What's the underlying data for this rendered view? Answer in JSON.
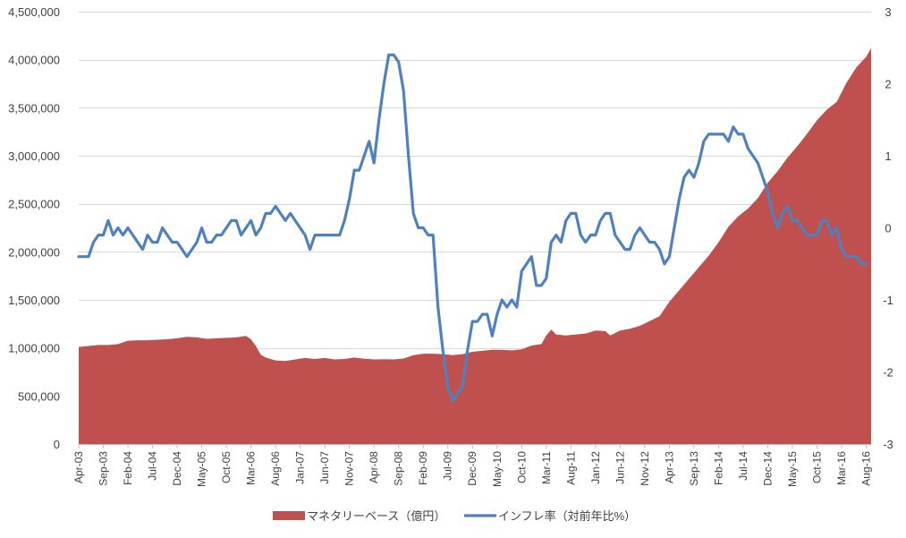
{
  "chart_data": {
    "type": "area+line",
    "xlabel": "",
    "ylabel_left": "",
    "ylabel_right": "",
    "left_axis": {
      "ylim": [
        0,
        4500000
      ],
      "ticks": [
        0,
        500000,
        1000000,
        1500000,
        2000000,
        2500000,
        3000000,
        3500000,
        4000000,
        4500000
      ],
      "tick_labels": [
        "0",
        "500,000",
        "1,000,000",
        "1,500,000",
        "2,000,000",
        "2,500,000",
        "3,000,000",
        "3,500,000",
        "4,000,000",
        "4,500,000"
      ]
    },
    "right_axis": {
      "ylim": [
        -3,
        3
      ],
      "ticks": [
        -3,
        -2,
        -1,
        0,
        1,
        2,
        3
      ],
      "tick_labels": [
        "-3",
        "-2",
        "-1",
        "0",
        "1",
        "2",
        "3"
      ]
    },
    "x_tick_labels": [
      "Apr-03",
      "Sep-03",
      "Feb-04",
      "Jul-04",
      "Dec-04",
      "May-05",
      "Oct-05",
      "Mar-06",
      "Aug-06",
      "Jan-07",
      "Jun-07",
      "Nov-07",
      "Apr-08",
      "Sep-08",
      "Feb-09",
      "Jul-09",
      "Dec-09",
      "May-10",
      "Oct-10",
      "Mar-11",
      "Aug-11",
      "Jan-12",
      "Jun-12",
      "Nov-12",
      "Apr-13",
      "Sep-13",
      "Feb-14",
      "Jul-14",
      "Dec-14",
      "May-15",
      "Oct-15",
      "Mar-16",
      "Aug-16"
    ],
    "grid": true,
    "legend_position": "bottom",
    "series": [
      {
        "name": "マネタリーベース（億円）",
        "type": "area",
        "axis": "left",
        "color": "#c0504d",
        "points": [
          [
            "Apr-03",
            1010000
          ],
          [
            "Jun-03",
            1020000
          ],
          [
            "Aug-03",
            1030000
          ],
          [
            "Oct-03",
            1030000
          ],
          [
            "Dec-03",
            1040000
          ],
          [
            "Feb-04",
            1075000
          ],
          [
            "Apr-04",
            1080000
          ],
          [
            "Jun-04",
            1080000
          ],
          [
            "Aug-04",
            1085000
          ],
          [
            "Oct-04",
            1090000
          ],
          [
            "Dec-04",
            1100000
          ],
          [
            "Feb-05",
            1115000
          ],
          [
            "Apr-05",
            1110000
          ],
          [
            "Jun-05",
            1095000
          ],
          [
            "Aug-05",
            1100000
          ],
          [
            "Oct-05",
            1105000
          ],
          [
            "Dec-05",
            1110000
          ],
          [
            "Feb-06",
            1125000
          ],
          [
            "Mar-06",
            1090000
          ],
          [
            "Apr-06",
            1020000
          ],
          [
            "May-06",
            930000
          ],
          [
            "Jun-06",
            900000
          ],
          [
            "Aug-06",
            870000
          ],
          [
            "Oct-06",
            865000
          ],
          [
            "Dec-06",
            880000
          ],
          [
            "Feb-07",
            895000
          ],
          [
            "Apr-07",
            885000
          ],
          [
            "Jun-07",
            895000
          ],
          [
            "Aug-07",
            880000
          ],
          [
            "Oct-07",
            885000
          ],
          [
            "Dec-07",
            900000
          ],
          [
            "Feb-08",
            888000
          ],
          [
            "Apr-08",
            880000
          ],
          [
            "Jun-08",
            882000
          ],
          [
            "Aug-08",
            880000
          ],
          [
            "Oct-08",
            890000
          ],
          [
            "Dec-08",
            925000
          ],
          [
            "Feb-09",
            940000
          ],
          [
            "Apr-09",
            940000
          ],
          [
            "Jun-09",
            935000
          ],
          [
            "Aug-09",
            925000
          ],
          [
            "Oct-09",
            935000
          ],
          [
            "Dec-09",
            960000
          ],
          [
            "Feb-10",
            970000
          ],
          [
            "Apr-10",
            980000
          ],
          [
            "Jun-10",
            980000
          ],
          [
            "Aug-10",
            975000
          ],
          [
            "Oct-10",
            985000
          ],
          [
            "Dec-10",
            1025000
          ],
          [
            "Feb-11",
            1040000
          ],
          [
            "Mar-11",
            1130000
          ],
          [
            "Apr-11",
            1190000
          ],
          [
            "May-11",
            1140000
          ],
          [
            "Jul-11",
            1130000
          ],
          [
            "Sep-11",
            1140000
          ],
          [
            "Nov-11",
            1150000
          ],
          [
            "Jan-12",
            1180000
          ],
          [
            "Mar-12",
            1175000
          ],
          [
            "Apr-12",
            1130000
          ],
          [
            "Jun-12",
            1180000
          ],
          [
            "Aug-12",
            1200000
          ],
          [
            "Oct-12",
            1230000
          ],
          [
            "Dec-12",
            1280000
          ],
          [
            "Feb-13",
            1330000
          ],
          [
            "Apr-13",
            1480000
          ],
          [
            "Jun-13",
            1600000
          ],
          [
            "Aug-13",
            1720000
          ],
          [
            "Oct-13",
            1840000
          ],
          [
            "Dec-13",
            1960000
          ],
          [
            "Feb-14",
            2100000
          ],
          [
            "Apr-14",
            2260000
          ],
          [
            "Jun-14",
            2370000
          ],
          [
            "Aug-14",
            2450000
          ],
          [
            "Oct-14",
            2560000
          ],
          [
            "Dec-14",
            2720000
          ],
          [
            "Feb-15",
            2840000
          ],
          [
            "Apr-15",
            2980000
          ],
          [
            "Jun-15",
            3100000
          ],
          [
            "Aug-15",
            3230000
          ],
          [
            "Oct-15",
            3370000
          ],
          [
            "Dec-15",
            3480000
          ],
          [
            "Feb-16",
            3560000
          ],
          [
            "Apr-16",
            3760000
          ],
          [
            "Jun-16",
            3920000
          ],
          [
            "Aug-16",
            4030000
          ],
          [
            "Sep-16",
            4120000
          ]
        ]
      },
      {
        "name": "インフレ率（対前年比%）",
        "type": "line",
        "axis": "right",
        "color": "#4f81bd",
        "points": [
          [
            "Apr-03",
            -0.4
          ],
          [
            "May-03",
            -0.4
          ],
          [
            "Jun-03",
            -0.4
          ],
          [
            "Jul-03",
            -0.2
          ],
          [
            "Aug-03",
            -0.1
          ],
          [
            "Sep-03",
            -0.1
          ],
          [
            "Oct-03",
            0.1
          ],
          [
            "Nov-03",
            -0.1
          ],
          [
            "Dec-03",
            0.0
          ],
          [
            "Jan-04",
            -0.1
          ],
          [
            "Feb-04",
            0.0
          ],
          [
            "Mar-04",
            -0.1
          ],
          [
            "Apr-04",
            -0.2
          ],
          [
            "May-04",
            -0.3
          ],
          [
            "Jun-04",
            -0.1
          ],
          [
            "Jul-04",
            -0.2
          ],
          [
            "Aug-04",
            -0.2
          ],
          [
            "Sep-04",
            0.0
          ],
          [
            "Oct-04",
            -0.1
          ],
          [
            "Nov-04",
            -0.2
          ],
          [
            "Dec-04",
            -0.2
          ],
          [
            "Jan-05",
            -0.3
          ],
          [
            "Feb-05",
            -0.4
          ],
          [
            "Mar-05",
            -0.3
          ],
          [
            "Apr-05",
            -0.2
          ],
          [
            "May-05",
            0.0
          ],
          [
            "Jun-05",
            -0.2
          ],
          [
            "Jul-05",
            -0.2
          ],
          [
            "Aug-05",
            -0.1
          ],
          [
            "Sep-05",
            -0.1
          ],
          [
            "Oct-05",
            0.0
          ],
          [
            "Nov-05",
            0.1
          ],
          [
            "Dec-05",
            0.1
          ],
          [
            "Jan-06",
            -0.1
          ],
          [
            "Feb-06",
            0.0
          ],
          [
            "Mar-06",
            0.1
          ],
          [
            "Apr-06",
            -0.1
          ],
          [
            "May-06",
            0.0
          ],
          [
            "Jun-06",
            0.2
          ],
          [
            "Jul-06",
            0.2
          ],
          [
            "Aug-06",
            0.3
          ],
          [
            "Sep-06",
            0.2
          ],
          [
            "Oct-06",
            0.1
          ],
          [
            "Nov-06",
            0.2
          ],
          [
            "Dec-06",
            0.1
          ],
          [
            "Jan-07",
            0.0
          ],
          [
            "Feb-07",
            -0.1
          ],
          [
            "Mar-07",
            -0.3
          ],
          [
            "Apr-07",
            -0.1
          ],
          [
            "May-07",
            -0.1
          ],
          [
            "Jun-07",
            -0.1
          ],
          [
            "Jul-07",
            -0.1
          ],
          [
            "Aug-07",
            -0.1
          ],
          [
            "Sep-07",
            -0.1
          ],
          [
            "Oct-07",
            0.1
          ],
          [
            "Nov-07",
            0.4
          ],
          [
            "Dec-07",
            0.8
          ],
          [
            "Jan-08",
            0.8
          ],
          [
            "Feb-08",
            1.0
          ],
          [
            "Mar-08",
            1.2
          ],
          [
            "Apr-08",
            0.9
          ],
          [
            "May-08",
            1.5
          ],
          [
            "Jun-08",
            2.0
          ],
          [
            "Jul-08",
            2.4
          ],
          [
            "Aug-08",
            2.4
          ],
          [
            "Sep-08",
            2.3
          ],
          [
            "Oct-08",
            1.9
          ],
          [
            "Nov-08",
            1.0
          ],
          [
            "Dec-08",
            0.2
          ],
          [
            "Jan-09",
            0.0
          ],
          [
            "Feb-09",
            0.0
          ],
          [
            "Mar-09",
            -0.1
          ],
          [
            "Apr-09",
            -0.1
          ],
          [
            "May-09",
            -1.1
          ],
          [
            "Jun-09",
            -1.7
          ],
          [
            "Jul-09",
            -2.2
          ],
          [
            "Aug-09",
            -2.4
          ],
          [
            "Sep-09",
            -2.3
          ],
          [
            "Oct-09",
            -2.2
          ],
          [
            "Nov-09",
            -1.7
          ],
          [
            "Dec-09",
            -1.3
          ],
          [
            "Jan-10",
            -1.3
          ],
          [
            "Feb-10",
            -1.2
          ],
          [
            "Mar-10",
            -1.2
          ],
          [
            "Apr-10",
            -1.5
          ],
          [
            "May-10",
            -1.2
          ],
          [
            "Jun-10",
            -1.0
          ],
          [
            "Jul-10",
            -1.1
          ],
          [
            "Aug-10",
            -1.0
          ],
          [
            "Sep-10",
            -1.1
          ],
          [
            "Oct-10",
            -0.6
          ],
          [
            "Nov-10",
            -0.5
          ],
          [
            "Dec-10",
            -0.4
          ],
          [
            "Jan-11",
            -0.8
          ],
          [
            "Feb-11",
            -0.8
          ],
          [
            "Mar-11",
            -0.7
          ],
          [
            "Apr-11",
            -0.2
          ],
          [
            "May-11",
            -0.1
          ],
          [
            "Jun-11",
            -0.2
          ],
          [
            "Jul-11",
            0.1
          ],
          [
            "Aug-11",
            0.2
          ],
          [
            "Sep-11",
            0.2
          ],
          [
            "Oct-11",
            -0.1
          ],
          [
            "Nov-11",
            -0.2
          ],
          [
            "Dec-11",
            -0.1
          ],
          [
            "Jan-12",
            -0.1
          ],
          [
            "Feb-12",
            0.1
          ],
          [
            "Mar-12",
            0.2
          ],
          [
            "Apr-12",
            0.2
          ],
          [
            "May-12",
            -0.1
          ],
          [
            "Jun-12",
            -0.2
          ],
          [
            "Jul-12",
            -0.3
          ],
          [
            "Aug-12",
            -0.3
          ],
          [
            "Sep-12",
            -0.1
          ],
          [
            "Oct-12",
            0.0
          ],
          [
            "Nov-12",
            -0.1
          ],
          [
            "Dec-12",
            -0.2
          ],
          [
            "Jan-13",
            -0.2
          ],
          [
            "Feb-13",
            -0.3
          ],
          [
            "Mar-13",
            -0.5
          ],
          [
            "Apr-13",
            -0.4
          ],
          [
            "May-13",
            0.0
          ],
          [
            "Jun-13",
            0.4
          ],
          [
            "Jul-13",
            0.7
          ],
          [
            "Aug-13",
            0.8
          ],
          [
            "Sep-13",
            0.7
          ],
          [
            "Oct-13",
            0.9
          ],
          [
            "Nov-13",
            1.2
          ],
          [
            "Dec-13",
            1.3
          ],
          [
            "Jan-14",
            1.3
          ],
          [
            "Feb-14",
            1.3
          ],
          [
            "Mar-14",
            1.3
          ],
          [
            "Apr-14",
            1.2
          ],
          [
            "May-14",
            1.4
          ],
          [
            "Jun-14",
            1.3
          ],
          [
            "Jul-14",
            1.3
          ],
          [
            "Aug-14",
            1.1
          ],
          [
            "Sep-14",
            1.0
          ],
          [
            "Oct-14",
            0.9
          ],
          [
            "Nov-14",
            0.7
          ],
          [
            "Dec-14",
            0.5
          ],
          [
            "Jan-15",
            0.2
          ],
          [
            "Feb-15",
            0.0
          ],
          [
            "Mar-15",
            0.2
          ],
          [
            "Apr-15",
            0.3
          ],
          [
            "May-15",
            0.1
          ],
          [
            "Jun-15",
            0.1
          ],
          [
            "Jul-15",
            0.0
          ],
          [
            "Aug-15",
            -0.1
          ],
          [
            "Sep-15",
            -0.1
          ],
          [
            "Oct-15",
            -0.1
          ],
          [
            "Nov-15",
            0.1
          ],
          [
            "Dec-15",
            0.1
          ],
          [
            "Jan-16",
            -0.1
          ],
          [
            "Feb-16",
            0.0
          ],
          [
            "Mar-16",
            -0.3
          ],
          [
            "Apr-16",
            -0.4
          ],
          [
            "May-16",
            -0.4
          ],
          [
            "Jun-16",
            -0.4
          ],
          [
            "Jul-16",
            -0.5
          ],
          [
            "Aug-16",
            -0.5
          ]
        ]
      }
    ]
  }
}
